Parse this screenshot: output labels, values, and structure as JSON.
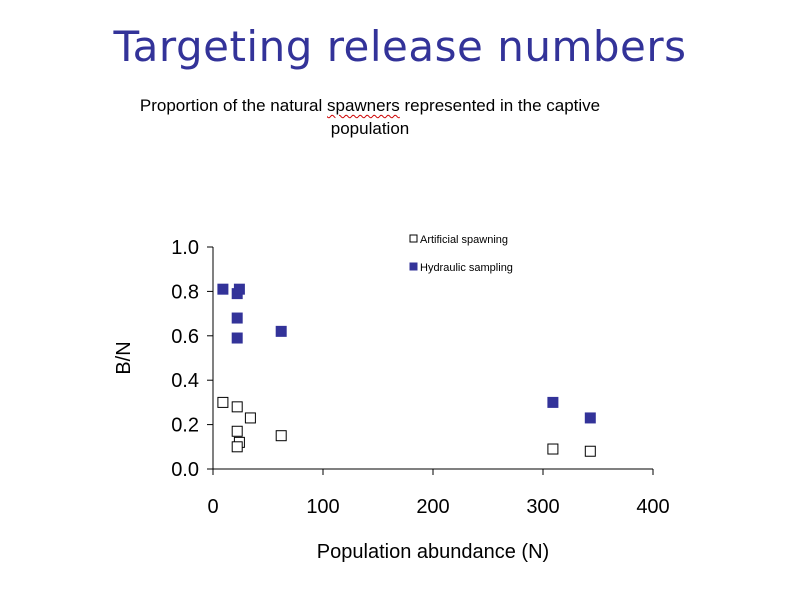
{
  "slide": {
    "title": "Targeting release numbers",
    "subtitle_pre": "Proportion of the natural ",
    "subtitle_misspelt": "spawners",
    "subtitle_post": " represented in the captive population"
  },
  "chart_data": {
    "type": "scatter",
    "title": "",
    "xlabel": "Population abundance (N)",
    "ylabel": "B/N",
    "xlim": [
      0,
      400
    ],
    "ylim": [
      0,
      1.0
    ],
    "x_ticks": [
      "0",
      "100",
      "200",
      "300",
      "400"
    ],
    "y_ticks": [
      "0.0",
      "0.2",
      "0.4",
      "0.6",
      "0.8",
      "1.0"
    ],
    "grid": false,
    "legend_position": "top-right",
    "series": [
      {
        "name": "Artificial spawning",
        "marker": "hollow-square",
        "color": "#000000",
        "x": [
          9,
          22,
          22,
          24,
          22,
          34,
          62,
          309,
          343
        ],
        "y": [
          0.3,
          0.28,
          0.17,
          0.12,
          0.1,
          0.23,
          0.15,
          0.09,
          0.08
        ]
      },
      {
        "name": "Hydraulic sampling",
        "marker": "filled-square",
        "color": "#333399",
        "x": [
          9,
          22,
          24,
          22,
          22,
          62,
          309,
          343
        ],
        "y": [
          0.81,
          0.79,
          0.81,
          0.68,
          0.59,
          0.62,
          0.3,
          0.23
        ]
      }
    ]
  }
}
